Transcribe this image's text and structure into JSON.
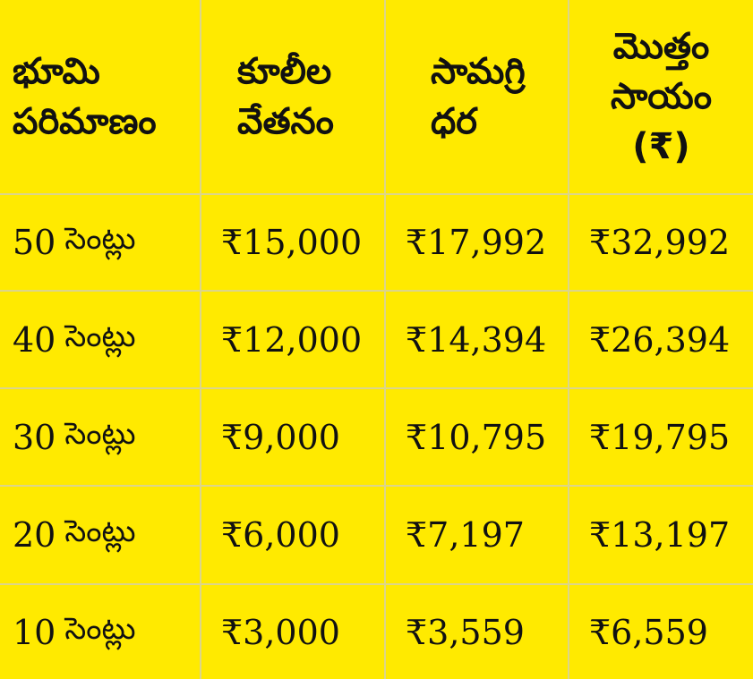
{
  "table": {
    "headers": [
      {
        "line1": "భూమి",
        "line2": "పరిమాణం",
        "line3": ""
      },
      {
        "line1": "కూలీల",
        "line2": "వేతనం",
        "line3": ""
      },
      {
        "line1": "సామగ్రి",
        "line2": "ధర",
        "line3": ""
      },
      {
        "line1": "మొత్తం",
        "line2": "సాయం",
        "line3": "(₹)"
      }
    ],
    "rows": [
      {
        "area": "50",
        "unit": "సెంట్లు",
        "wages": "₹15,000",
        "materials": "₹17,992",
        "total": "₹32,992"
      },
      {
        "area": "40",
        "unit": "సెంట్లు",
        "wages": "₹12,000",
        "materials": "₹14,394",
        "total": "₹26,394"
      },
      {
        "area": "30",
        "unit": "సెంట్లు",
        "wages": "₹9,000",
        "materials": "₹10,795",
        "total": "₹19,795"
      },
      {
        "area": "20",
        "unit": "సెంట్లు",
        "wages": "₹6,000",
        "materials": "₹7,197",
        "total": "₹13,197"
      },
      {
        "area": "10",
        "unit": "సెంట్లు",
        "wages": "₹3,000",
        "materials": "₹3,559",
        "total": "₹6,559"
      }
    ]
  },
  "colors": {
    "background": "#ffea00",
    "grid_line": "#dcd58a",
    "text": "#111111"
  }
}
